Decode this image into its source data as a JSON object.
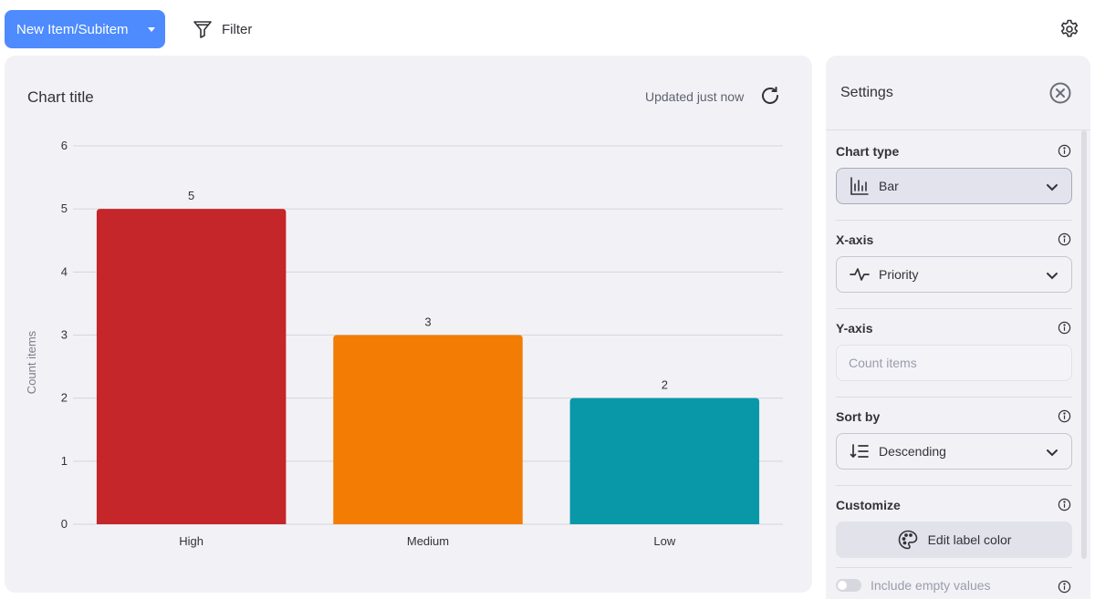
{
  "toolbar": {
    "new_item_label": "New Item/Subitem",
    "filter_label": "Filter"
  },
  "chart_card": {
    "title": "Chart title",
    "updated_text": "Updated just now"
  },
  "chart_data": {
    "type": "bar",
    "categories": [
      "High",
      "Medium",
      "Low"
    ],
    "values": [
      5,
      3,
      2
    ],
    "colors": [
      "#c4262a",
      "#f27c04",
      "#0898a8"
    ],
    "ylabel": "Count items",
    "xlabel": "",
    "ylim": [
      0,
      6
    ],
    "yticks": [
      "0",
      "1",
      "2",
      "3",
      "4",
      "5",
      "6"
    ],
    "data_labels": [
      "5",
      "3",
      "2"
    ],
    "grid": true
  },
  "settings": {
    "title": "Settings",
    "chart_type": {
      "label": "Chart type",
      "value": "Bar",
      "icon": "bar-chart-icon"
    },
    "x_axis": {
      "label": "X-axis",
      "value": "Priority",
      "icon": "pulse-icon"
    },
    "y_axis": {
      "label": "Y-axis",
      "placeholder": "Count items"
    },
    "sort_by": {
      "label": "Sort by",
      "value": "Descending",
      "icon": "sort-descending-icon"
    },
    "customize": {
      "label": "Customize",
      "button_label": "Edit label color",
      "icon": "palette-icon"
    },
    "include_empty": {
      "label": "Include empty values",
      "enabled": false
    }
  },
  "colors": {
    "primary_button": "#4d8bff",
    "panel_bg": "#f2f2f6"
  }
}
